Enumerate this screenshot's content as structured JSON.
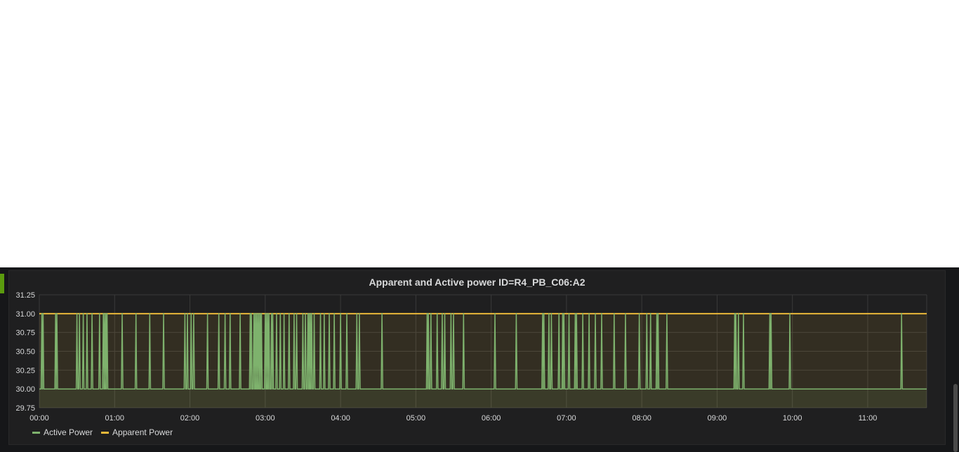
{
  "panel": {
    "title": "Apparent and Active power ID=R4_PB_C06:A2"
  },
  "colors": {
    "active": "#7eb26d",
    "apparent": "#eab839",
    "background": "#1f1f20",
    "grid": "#3a3a3a",
    "text": "#d8d9da"
  },
  "chart_data": {
    "type": "line",
    "title": "Apparent and Active power ID=R4_PB_C06:A2",
    "xlabel": "",
    "ylabel": "",
    "xlim": [
      "00:00",
      "11:47"
    ],
    "ylim": [
      29.75,
      31.25
    ],
    "y_ticks": [
      "31.25",
      "31.00",
      "30.75",
      "30.50",
      "30.25",
      "30.00",
      "29.75"
    ],
    "x_ticks": [
      "00:00",
      "01:00",
      "02:00",
      "03:00",
      "04:00",
      "05:00",
      "06:00",
      "07:00",
      "08:00",
      "09:00",
      "10:00",
      "11:00"
    ],
    "grid": true,
    "legend": "bottom-left",
    "series": [
      {
        "name": "Active Power",
        "baseline": 30,
        "spike_value": 31,
        "spike_times": [
          "00:02",
          "00:03",
          "00:13",
          "00:14",
          "00:30",
          "00:32",
          "00:35",
          "00:38",
          "00:42",
          "00:48",
          "00:51",
          "00:52",
          "00:53",
          "00:54",
          "01:06",
          "01:17",
          "01:28",
          "01:39",
          "01:56",
          "01:58",
          "02:01",
          "02:03",
          "02:14",
          "02:23",
          "02:28",
          "02:32",
          "02:40",
          "02:48",
          "02:49",
          "02:51",
          "02:52",
          "02:53",
          "02:54",
          "02:55",
          "02:56",
          "02:57",
          "03:00",
          "03:01",
          "03:02",
          "03:03",
          "03:05",
          "03:06",
          "03:09",
          "03:12",
          "03:15",
          "03:19",
          "03:23",
          "03:25",
          "03:30",
          "03:32",
          "03:34",
          "03:35",
          "03:36",
          "03:37",
          "03:39",
          "03:44",
          "03:47",
          "03:51",
          "03:55",
          "04:00",
          "04:05",
          "04:13",
          "04:15",
          "04:33",
          "05:09",
          "05:10",
          "05:12",
          "05:17",
          "05:21",
          "05:23",
          "05:28",
          "05:30",
          "05:38",
          "06:03",
          "06:20",
          "06:41",
          "06:42",
          "06:46",
          "06:48",
          "06:54",
          "06:57",
          "06:58",
          "07:02",
          "07:07",
          "07:08",
          "07:13",
          "07:18",
          "07:23",
          "07:28",
          "07:38",
          "07:47",
          "07:58",
          "08:04",
          "08:07",
          "08:12",
          "08:13",
          "08:20",
          "09:14",
          "09:15",
          "09:17",
          "09:21",
          "09:42",
          "09:43",
          "09:58",
          "11:27"
        ]
      },
      {
        "name": "Apparent Power",
        "constant_value": 31
      }
    ]
  }
}
